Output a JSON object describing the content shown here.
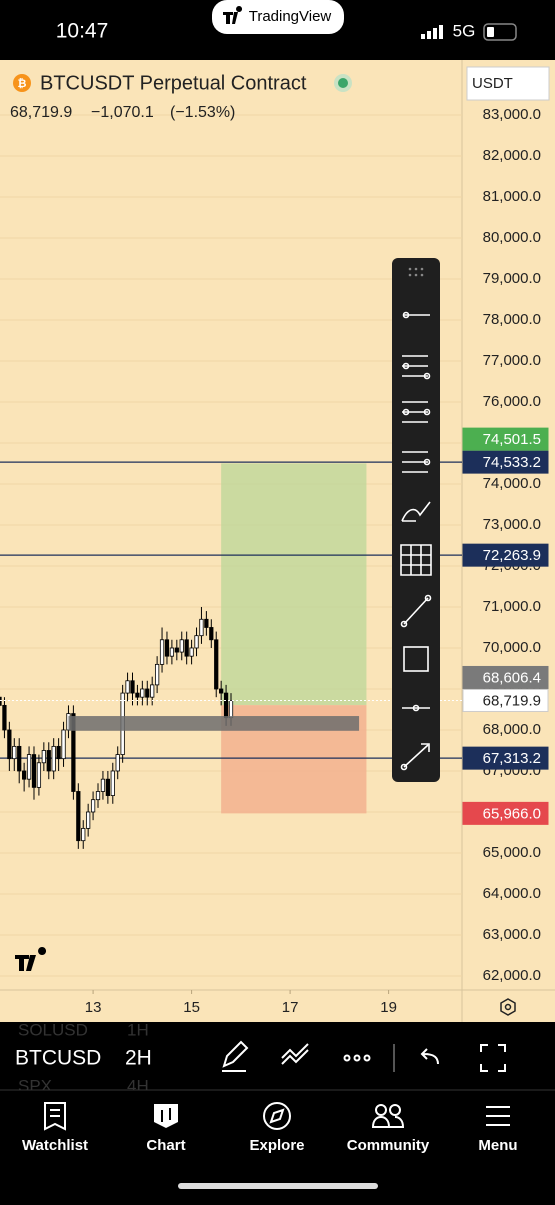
{
  "status_bar": {
    "time": "10:47",
    "app": "TradingView",
    "network": "5G"
  },
  "header": {
    "symbol": "BTCUSDT Perpetual Contract",
    "change": "−1,070.1",
    "change_pct": "(−1.53%)",
    "currency": "USDT"
  },
  "chart_data": {
    "type": "candlestick",
    "x": [
      11.1,
      11.2,
      11.3,
      11.4,
      11.5,
      11.6,
      11.7,
      11.8,
      11.9,
      12.0,
      12.1,
      12.2,
      12.3,
      12.4,
      12.5,
      12.6,
      12.7,
      12.8,
      12.9,
      13.0,
      13.1,
      13.2,
      13.3,
      13.4,
      13.5,
      13.6,
      13.7,
      13.8,
      13.9,
      14.0,
      14.1,
      14.2,
      14.3,
      14.4,
      14.5,
      14.6,
      14.7,
      14.8,
      14.9,
      15.0,
      15.1,
      15.2,
      15.3,
      15.4,
      15.5,
      15.6,
      15.7,
      15.8
    ],
    "open": [
      68800,
      68600,
      68000,
      67300,
      67600,
      67000,
      66800,
      67400,
      66600,
      67200,
      67500,
      67000,
      67600,
      67300,
      68000,
      68400,
      66500,
      65300,
      65600,
      66000,
      66300,
      66500,
      66800,
      66400,
      67000,
      67400,
      68900,
      69200,
      68900,
      68800,
      69000,
      68800,
      69100,
      69600,
      70200,
      69800,
      70000,
      69900,
      70200,
      69800,
      70000,
      70300,
      70700,
      70500,
      70200,
      69000,
      68900,
      68300
    ],
    "high": [
      69000,
      68800,
      68200,
      67800,
      67800,
      67200,
      67600,
      67600,
      67400,
      67700,
      67700,
      67800,
      67800,
      68200,
      68600,
      68600,
      66700,
      65800,
      66200,
      66500,
      66700,
      67000,
      67000,
      67200,
      67600,
      69100,
      69400,
      69400,
      69100,
      69200,
      69200,
      69300,
      69800,
      70500,
      70400,
      70200,
      70200,
      70400,
      70400,
      70200,
      70500,
      71000,
      70900,
      70700,
      70400,
      69200,
      69100,
      68900
    ],
    "low": [
      68300,
      67800,
      67000,
      67000,
      66700,
      66500,
      66600,
      66300,
      66400,
      67000,
      66800,
      66800,
      67000,
      67100,
      67800,
      66300,
      65100,
      65100,
      65400,
      65800,
      66100,
      66300,
      66200,
      66200,
      66800,
      67200,
      68700,
      68600,
      68600,
      68600,
      68600,
      68600,
      68900,
      69400,
      69600,
      69600,
      69700,
      69700,
      69600,
      69600,
      69800,
      70100,
      70300,
      70000,
      68800,
      68600,
      68100,
      68100
    ],
    "close": [
      68600,
      68000,
      67300,
      67600,
      67000,
      66800,
      67400,
      66600,
      67200,
      67500,
      67000,
      67600,
      67300,
      68000,
      68400,
      66500,
      65300,
      65600,
      66000,
      66300,
      66500,
      66800,
      66400,
      67000,
      67400,
      68900,
      69200,
      68900,
      68800,
      69000,
      68800,
      69100,
      69600,
      70200,
      69800,
      70000,
      69900,
      70200,
      69800,
      70000,
      70300,
      70700,
      70500,
      70200,
      69000,
      68900,
      68300,
      68719.9
    ],
    "up_color": "#ffffff",
    "down_color": "#000000",
    "xlim": [
      11.11,
      20.49
    ],
    "xticks": [
      13,
      15,
      17,
      19
    ],
    "ylim": [
      61658,
      84341
    ],
    "yticks": [
      {
        "value": 62000,
        "label": "62,000.0"
      },
      {
        "value": 63000,
        "label": "63,000.0"
      },
      {
        "value": 64000,
        "label": "64,000.0"
      },
      {
        "value": 65000,
        "label": "65,000.0"
      },
      {
        "value": 66000,
        "label": "66,000.0"
      },
      {
        "value": 67000,
        "label": "67,000.0"
      },
      {
        "value": 68000,
        "label": "68,000.0"
      },
      {
        "value": 69000,
        "label": "69,000.0"
      },
      {
        "value": 70000,
        "label": "70,000.0"
      },
      {
        "value": 71000,
        "label": "71,000.0"
      },
      {
        "value": 72000,
        "label": "72,000.0"
      },
      {
        "value": 73000,
        "label": "73,000.0"
      },
      {
        "value": 74000,
        "label": "74,000.0"
      },
      {
        "value": 75000,
        "label": "75,000.0"
      },
      {
        "value": 76000,
        "label": "76,000.0"
      },
      {
        "value": 77000,
        "label": "77,000.0"
      },
      {
        "value": 78000,
        "label": "78,000.0"
      },
      {
        "value": 79000,
        "label": "79,000.0"
      },
      {
        "value": 80000,
        "label": "80,000.0"
      },
      {
        "value": 81000,
        "label": "81,000.0"
      },
      {
        "value": 82000,
        "label": "82,000.0"
      },
      {
        "value": 83000,
        "label": "83,000.0"
      }
    ],
    "grid": true,
    "horizontal_lines": [
      {
        "value": 74533.2,
        "label": "74,533.2"
      },
      {
        "value": 72263.9,
        "label": "72,263.9"
      },
      {
        "value": 67313.2,
        "label": "67,313.2"
      }
    ],
    "line_color": "#1c2f5a",
    "position": {
      "target": {
        "value": 74501.5,
        "label": "74,501.5"
      },
      "entry": {
        "value": 68606.4,
        "label": "68,606.4"
      },
      "stop": {
        "value": 65966.0,
        "label": "65,966.0"
      },
      "start_x": 15.6,
      "end_x": 18.55
    },
    "last_price": {
      "value": 68719.9,
      "label": "68,719.9"
    },
    "zone": {
      "top": 68340,
      "bottom": 67980,
      "start_x": 12.5,
      "end_x": 18.4
    }
  },
  "toolbar": {
    "symbol": "BTCUSD",
    "interval": "2H",
    "behind": [
      "SOLUSD",
      "1H",
      "SPX",
      "4H"
    ]
  },
  "tabs": [
    "Watchlist",
    "Chart",
    "Explore",
    "Community",
    "Menu"
  ]
}
